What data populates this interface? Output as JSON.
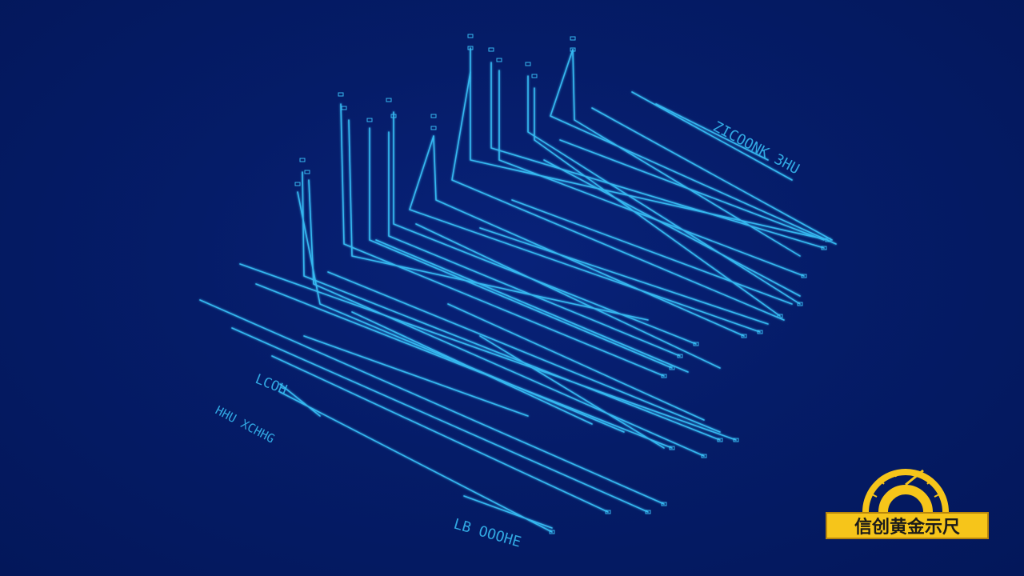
{
  "scene": {
    "description_free": true,
    "background_color": "#041a63",
    "line_color": "#36b8f0"
  },
  "labels": {
    "top_right_label": "ZICOONK 3HU",
    "left_label_1": "LCOH",
    "left_label_2": "HHU  XCHHG",
    "bottom_label": "LB OOOHE"
  },
  "badge": {
    "text": "信创黄金示尺",
    "bar_color": "#f6c51a",
    "gauge_color": "#f6c51a"
  }
}
